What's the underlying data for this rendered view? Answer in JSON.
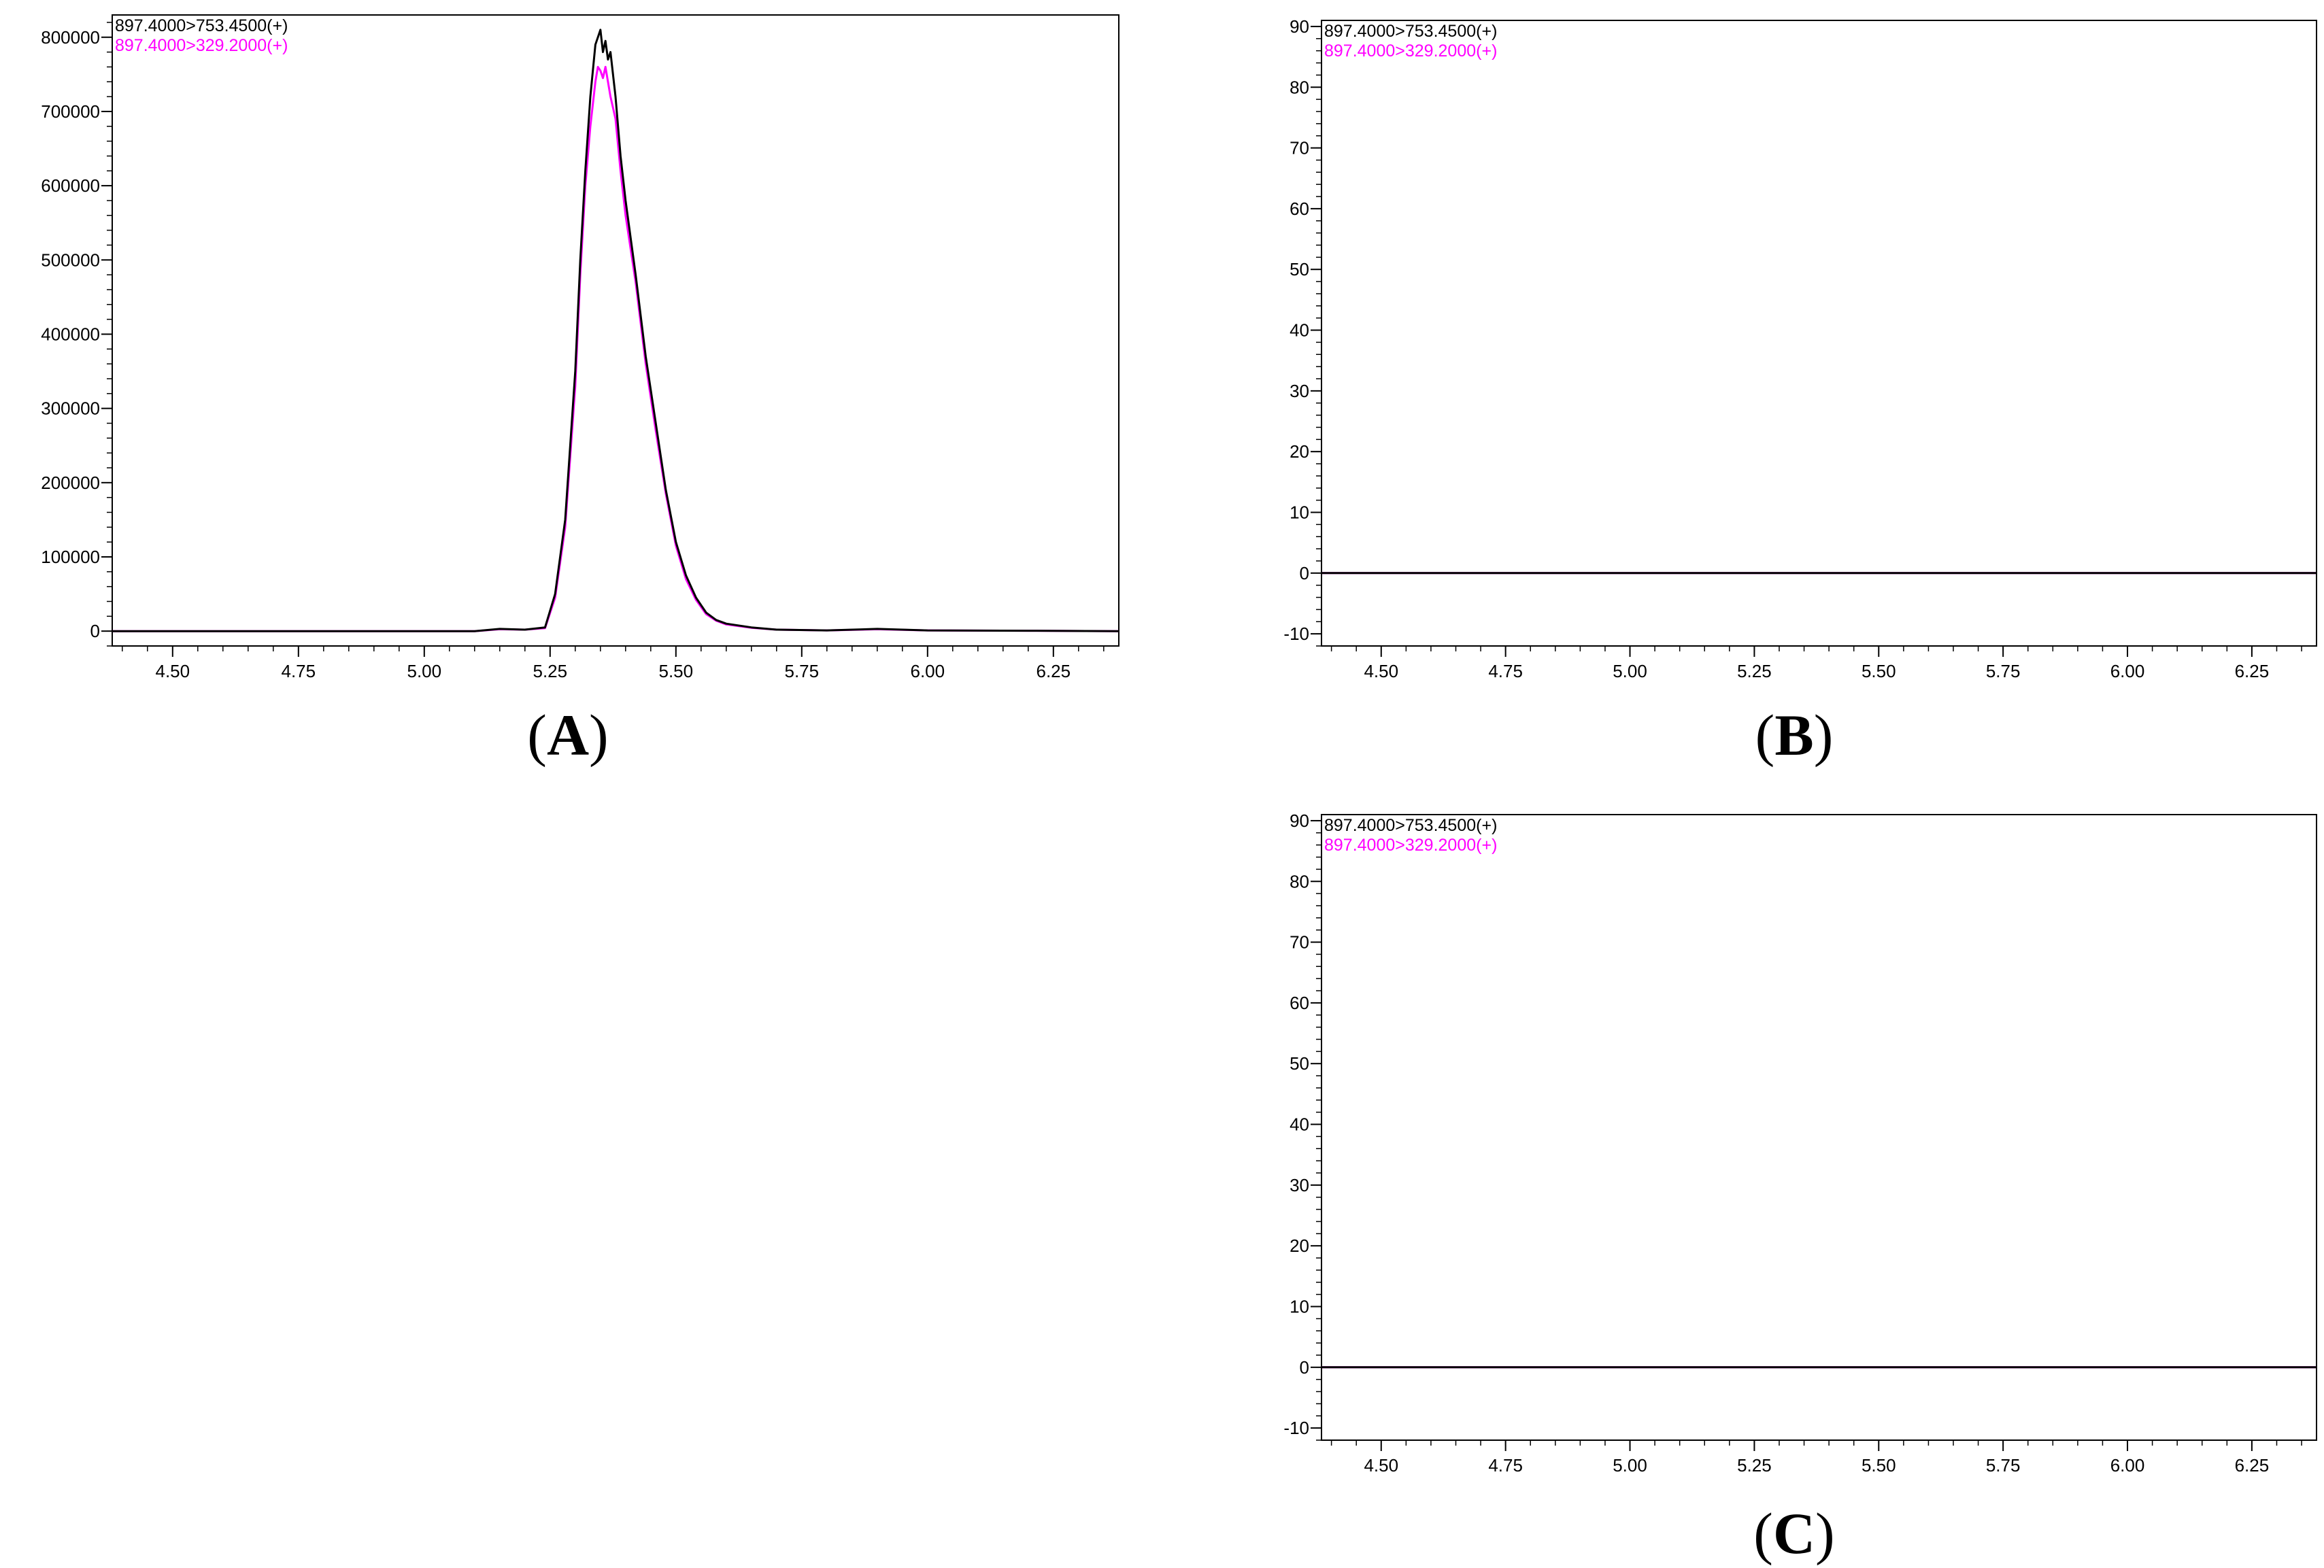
{
  "chart_data": [
    {
      "panel": "A",
      "type": "line",
      "xlim": [
        4.38,
        6.38
      ],
      "ylim": [
        -20000,
        830000
      ],
      "xticks": [
        4.5,
        4.75,
        5.0,
        5.25,
        5.5,
        5.75,
        6.0,
        6.25
      ],
      "xtick_labels": [
        "4.50",
        "4.75",
        "5.00",
        "5.25",
        "5.50",
        "5.75",
        "6.00",
        "6.25"
      ],
      "yticks": [
        0,
        100000,
        200000,
        300000,
        400000,
        500000,
        600000,
        700000,
        800000
      ],
      "ytick_labels": [
        "0",
        "100000",
        "200000",
        "300000",
        "400000",
        "500000",
        "600000",
        "700000",
        "800000"
      ],
      "grid": false,
      "legend_position": "top-left",
      "series": [
        {
          "name": "897.4000>753.4500(+)",
          "color": "#000000",
          "x": [
            4.38,
            4.6,
            4.8,
            5.0,
            5.1,
            5.15,
            5.2,
            5.24,
            5.26,
            5.28,
            5.3,
            5.31,
            5.32,
            5.33,
            5.34,
            5.345,
            5.35,
            5.355,
            5.36,
            5.365,
            5.37,
            5.38,
            5.39,
            5.4,
            5.42,
            5.44,
            5.46,
            5.48,
            5.5,
            5.52,
            5.54,
            5.56,
            5.58,
            5.6,
            5.65,
            5.7,
            5.8,
            5.9,
            6.0,
            6.2,
            6.38
          ],
          "y": [
            0,
            0,
            0,
            0,
            0,
            3000,
            2000,
            5000,
            50000,
            150000,
            350000,
            500000,
            620000,
            720000,
            790000,
            800000,
            810000,
            780000,
            795000,
            770000,
            780000,
            720000,
            640000,
            580000,
            480000,
            370000,
            280000,
            190000,
            120000,
            75000,
            45000,
            25000,
            15000,
            10000,
            5000,
            2000,
            1000,
            3000,
            1000,
            500,
            0
          ]
        },
        {
          "name": "897.4000>329.2000(+)",
          "color": "#ff00ff",
          "x": [
            4.38,
            4.6,
            4.8,
            5.0,
            5.1,
            5.15,
            5.2,
            5.24,
            5.26,
            5.28,
            5.3,
            5.31,
            5.32,
            5.33,
            5.34,
            5.345,
            5.35,
            5.355,
            5.36,
            5.365,
            5.37,
            5.38,
            5.39,
            5.4,
            5.42,
            5.44,
            5.46,
            5.48,
            5.5,
            5.52,
            5.54,
            5.56,
            5.58,
            5.6,
            5.65,
            5.7,
            5.8,
            5.9,
            6.0,
            6.2,
            6.38
          ],
          "y": [
            0,
            0,
            0,
            0,
            0,
            2500,
            2000,
            4000,
            45000,
            140000,
            330000,
            480000,
            600000,
            680000,
            740000,
            760000,
            755000,
            745000,
            760000,
            740000,
            720000,
            690000,
            620000,
            560000,
            470000,
            360000,
            270000,
            185000,
            115000,
            70000,
            42000,
            23000,
            14000,
            9000,
            4500,
            2000,
            1000,
            2500,
            1000,
            500,
            0
          ]
        }
      ]
    },
    {
      "panel": "B",
      "type": "line",
      "xlim": [
        4.38,
        6.38
      ],
      "ylim": [
        -12,
        91
      ],
      "xticks": [
        4.5,
        4.75,
        5.0,
        5.25,
        5.5,
        5.75,
        6.0,
        6.25
      ],
      "xtick_labels": [
        "4.50",
        "4.75",
        "5.00",
        "5.25",
        "5.50",
        "5.75",
        "6.00",
        "6.25"
      ],
      "yticks": [
        -10,
        0,
        10,
        20,
        30,
        40,
        50,
        60,
        70,
        80,
        90
      ],
      "ytick_labels": [
        "-10",
        "0",
        "10",
        "20",
        "30",
        "40",
        "50",
        "60",
        "70",
        "80",
        "90"
      ],
      "grid": false,
      "legend_position": "top-left",
      "series": [
        {
          "name": "897.4000>753.4500(+)",
          "color": "#000000",
          "x": [
            4.38,
            6.38
          ],
          "y": [
            0,
            0
          ]
        },
        {
          "name": "897.4000>329.2000(+)",
          "color": "#ff00ff",
          "x": [
            4.38,
            6.38
          ],
          "y": [
            0,
            0
          ]
        }
      ]
    },
    {
      "panel": "C",
      "type": "line",
      "xlim": [
        4.38,
        6.38
      ],
      "ylim": [
        -12,
        91
      ],
      "xticks": [
        4.5,
        4.75,
        5.0,
        5.25,
        5.5,
        5.75,
        6.0,
        6.25
      ],
      "xtick_labels": [
        "4.50",
        "4.75",
        "5.00",
        "5.25",
        "5.50",
        "5.75",
        "6.00",
        "6.25"
      ],
      "yticks": [
        -10,
        0,
        10,
        20,
        30,
        40,
        50,
        60,
        70,
        80,
        90
      ],
      "ytick_labels": [
        "-10",
        "0",
        "10",
        "20",
        "30",
        "40",
        "50",
        "60",
        "70",
        "80",
        "90"
      ],
      "grid": false,
      "legend_position": "top-left",
      "series": [
        {
          "name": "897.4000>753.4500(+)",
          "color": "#000000",
          "x": [
            4.38,
            6.38
          ],
          "y": [
            0,
            0
          ]
        },
        {
          "name": "897.4000>329.2000(+)",
          "color": "#ff00ff",
          "x": [
            4.38,
            6.38
          ],
          "y": [
            0,
            0
          ]
        }
      ]
    }
  ],
  "panel_labels": {
    "A": {
      "open": "(",
      "letter": "A",
      "close": ")"
    },
    "B": {
      "open": "(",
      "letter": "B",
      "close": ")"
    },
    "C": {
      "open": "(",
      "letter": "C",
      "close": ")"
    }
  }
}
